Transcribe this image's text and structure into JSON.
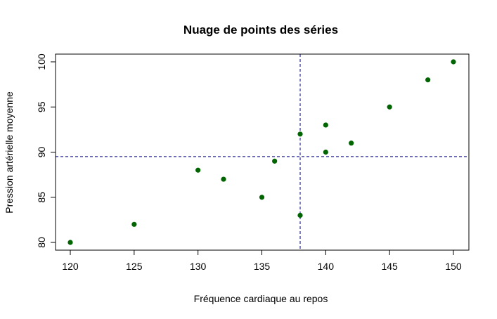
{
  "chart_data": {
    "type": "scatter",
    "title": "Nuage de points des séries",
    "xlabel": "Fréquence cardiaque au repos",
    "ylabel": "Pression artérielle moyenne",
    "xlim": [
      120,
      150
    ],
    "ylim": [
      80,
      100
    ],
    "xticks": [
      120,
      125,
      130,
      135,
      140,
      145,
      150
    ],
    "yticks": [
      80,
      85,
      90,
      95,
      100
    ],
    "grid": false,
    "point_color": "#006400",
    "reference_line_color": "#000080",
    "reference_lines": {
      "x_mean": 138,
      "y_mean": 89.5
    },
    "points": [
      {
        "x": 120,
        "y": 80
      },
      {
        "x": 125,
        "y": 82
      },
      {
        "x": 130,
        "y": 88
      },
      {
        "x": 132,
        "y": 87
      },
      {
        "x": 135,
        "y": 85
      },
      {
        "x": 136,
        "y": 89
      },
      {
        "x": 138,
        "y": 92
      },
      {
        "x": 138,
        "y": 83
      },
      {
        "x": 140,
        "y": 93
      },
      {
        "x": 140,
        "y": 90
      },
      {
        "x": 142,
        "y": 91
      },
      {
        "x": 145,
        "y": 95
      },
      {
        "x": 148,
        "y": 98
      },
      {
        "x": 150,
        "y": 100
      }
    ]
  }
}
